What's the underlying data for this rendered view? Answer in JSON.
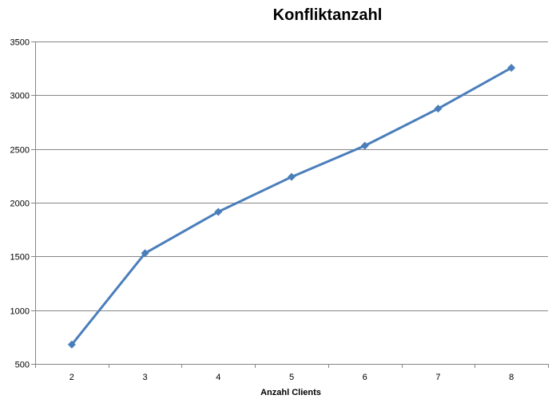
{
  "chart_data": {
    "type": "line",
    "title": "Konfliktanzahl",
    "xlabel": "Anzahl Clients",
    "ylabel": "",
    "categories": [
      "2",
      "3",
      "4",
      "5",
      "6",
      "7",
      "8"
    ],
    "series": [
      {
        "values": [
          680,
          1530,
          1915,
          2240,
          2530,
          2875,
          3255
        ],
        "color": "#4a7ebb",
        "marker": "diamond"
      }
    ],
    "ylim": [
      500,
      3500
    ],
    "yticks": [
      500,
      1000,
      1500,
      2000,
      2500,
      3000,
      3500
    ],
    "grid": "horizontal",
    "legend": "none"
  }
}
